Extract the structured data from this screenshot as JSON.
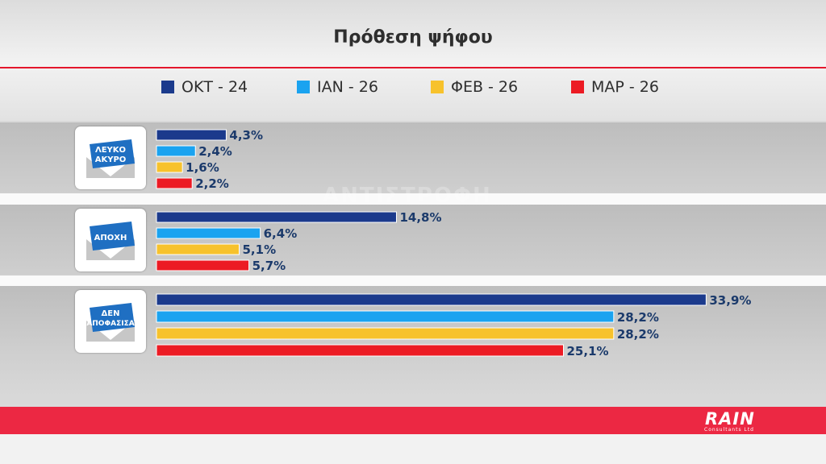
{
  "chart_data": {
    "type": "bar",
    "title": "Πρόθεση ψήφου",
    "categories": [
      "ΛΕΥΚΟ ΑΚΥΡΟ",
      "ΑΠΟΧΗ",
      "ΔΕΝ ΑΠΟΦΑΣΙΣΑ"
    ],
    "series": [
      {
        "name": "ΟΚΤ - 24",
        "color": "#1b3a8c",
        "values": [
          4.3,
          14.8,
          33.9
        ],
        "labels": [
          "4,3%",
          "14,8%",
          "33,9%"
        ]
      },
      {
        "name": "ΙΑΝ - 26",
        "color": "#1aa3f0",
        "values": [
          2.4,
          6.4,
          28.2
        ],
        "labels": [
          "2,4%",
          "6,4%",
          "28,2%"
        ]
      },
      {
        "name": "ΦΕΒ - 26",
        "color": "#f7c22c",
        "values": [
          1.6,
          5.1,
          28.2
        ],
        "labels": [
          "1,6%",
          "5,1%",
          "28,2%"
        ]
      },
      {
        "name": "ΜΑΡ - 26",
        "color": "#ec1b24",
        "values": [
          2.2,
          5.7,
          25.1
        ],
        "labels": [
          "2,2%",
          "5,7%",
          "25,1%"
        ]
      }
    ],
    "orientation": "horizontal",
    "legend": "top",
    "grid": false
  },
  "category_icons": [
    {
      "line1": "ΛΕΥΚΟ",
      "line2": "ΑΚΥΡΟ",
      "icon": "ballot-envelope-icon"
    },
    {
      "line1": "ΑΠΟΧΗ",
      "line2": "",
      "icon": "ballot-envelope-icon"
    },
    {
      "line1": "ΔΕΝ",
      "line2": "ΑΠΟΦΑΣΙΣΑ",
      "icon": "ballot-envelope-icon"
    }
  ],
  "watermark": "ΑΝΤΙΣΤΡΟΦΗ",
  "logo": {
    "text": "RAIN",
    "subtext": "Consultants Ltd"
  },
  "colors": {
    "accent_red": "#ec2843",
    "label_text": "#1b3a6b"
  }
}
